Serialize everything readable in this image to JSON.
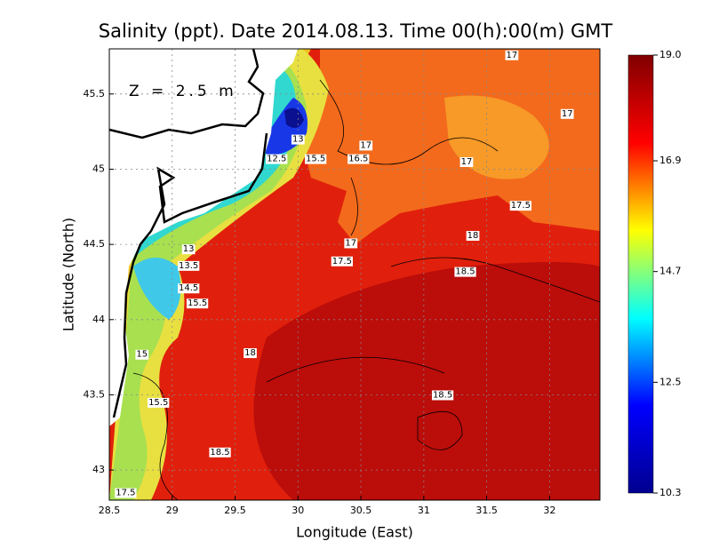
{
  "chart_data": {
    "type": "contour",
    "title": "Salinity (ppt). Date 2014.08.13. Time 00(h):00(m) GMT",
    "annotation": "Z = 2.5 m",
    "xlabel": "Longitude (East)",
    "ylabel": "Latitude (North)",
    "xlim": [
      28.5,
      32.4
    ],
    "ylim": [
      42.8,
      45.8
    ],
    "xticks": [
      28.5,
      29,
      29.5,
      30,
      30.5,
      31,
      31.5,
      32
    ],
    "yticks": [
      43,
      43.5,
      44,
      44.5,
      45,
      45.5
    ],
    "grid": true,
    "colorbar": {
      "lim": [
        10.3,
        19.0
      ],
      "ticks": [
        10.3,
        12.5,
        14.7,
        16.9,
        {
          "value": 19.0,
          "label": "19.0"
        }
      ],
      "colors": [
        "#00008f",
        "#0000ff",
        "#00ffff",
        "#ffff00",
        "#ff0000",
        "#800000"
      ]
    },
    "contour_labels": [
      {
        "x": 31.7,
        "y": 45.76,
        "value": 17
      },
      {
        "x": 32.14,
        "y": 45.37,
        "value": 17
      },
      {
        "x": 30.54,
        "y": 45.16,
        "value": 17
      },
      {
        "x": 30.48,
        "y": 45.07,
        "value": 16.5
      },
      {
        "x": 31.34,
        "y": 45.05,
        "value": 17
      },
      {
        "x": 31.77,
        "y": 44.76,
        "value": 17.5
      },
      {
        "x": 31.39,
        "y": 44.56,
        "value": 18
      },
      {
        "x": 30.42,
        "y": 44.51,
        "value": 17
      },
      {
        "x": 30.35,
        "y": 44.39,
        "value": 17.5
      },
      {
        "x": 31.33,
        "y": 44.32,
        "value": 18.5
      },
      {
        "x": 29.13,
        "y": 44.47,
        "value": 13
      },
      {
        "x": 29.13,
        "y": 44.36,
        "value": 13.5
      },
      {
        "x": 29.13,
        "y": 44.21,
        "value": 14.5
      },
      {
        "x": 29.2,
        "y": 44.11,
        "value": 15.5
      },
      {
        "x": 30.0,
        "y": 45.2,
        "value": 13
      },
      {
        "x": 30.14,
        "y": 45.07,
        "value": 15.5
      },
      {
        "x": 29.83,
        "y": 45.07,
        "value": 12.5
      },
      {
        "x": 29.62,
        "y": 43.78,
        "value": 18
      },
      {
        "x": 28.76,
        "y": 43.77,
        "value": 15
      },
      {
        "x": 28.89,
        "y": 43.45,
        "value": 15.5
      },
      {
        "x": 31.15,
        "y": 43.5,
        "value": 18.5
      },
      {
        "x": 29.38,
        "y": 43.12,
        "value": 18.5
      },
      {
        "x": 28.63,
        "y": 42.85,
        "value": 17.5
      }
    ]
  }
}
